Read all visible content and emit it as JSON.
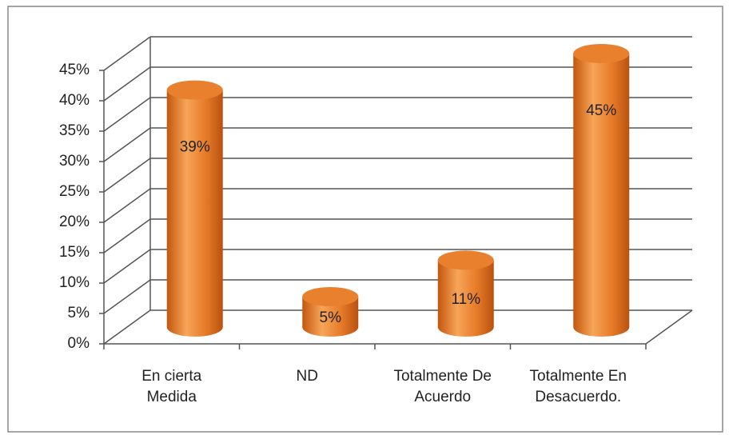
{
  "chart_data": {
    "type": "bar",
    "categories": [
      "En cierta\nMedida",
      "ND",
      "Totalmente De\nAcuerdo",
      "Totalmente En\nDesacuerdo."
    ],
    "values": [
      39,
      5,
      11,
      45
    ],
    "value_labels": [
      "39%",
      "5%",
      "11%",
      "45%"
    ],
    "color": "#e8802e",
    "ylim": [
      0,
      45
    ],
    "yticks": [
      {
        "value": 0,
        "label": "0%"
      },
      {
        "value": 5,
        "label": "5%"
      },
      {
        "value": 10,
        "label": "10%"
      },
      {
        "value": 15,
        "label": "15%"
      },
      {
        "value": 20,
        "label": "20%"
      },
      {
        "value": 25,
        "label": "25%"
      },
      {
        "value": 30,
        "label": "30%"
      },
      {
        "value": 35,
        "label": "35%"
      },
      {
        "value": 40,
        "label": "40%"
      },
      {
        "value": 45,
        "label": "45%"
      }
    ],
    "grid": true
  }
}
